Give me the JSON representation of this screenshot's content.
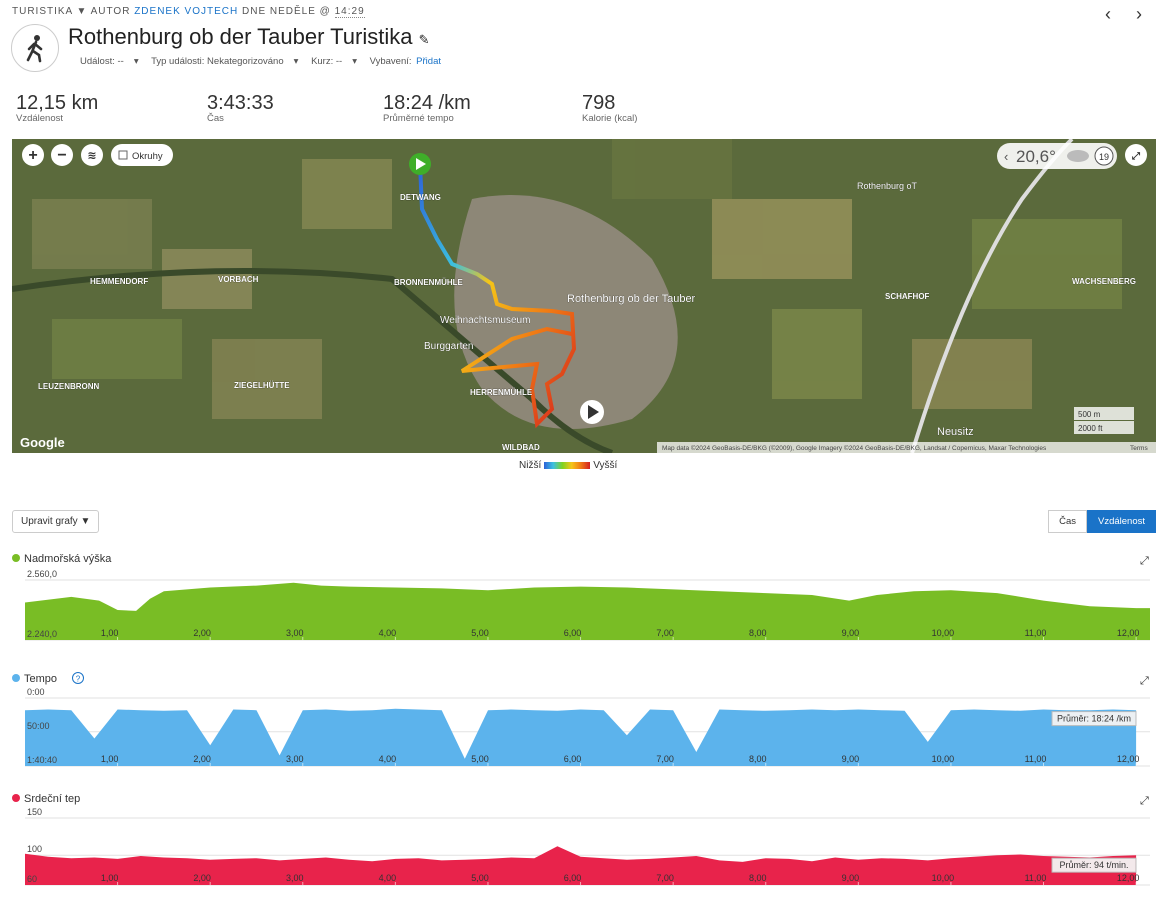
{
  "header": {
    "breadcrumb": {
      "activity": "TURISTIKA",
      "author_prefix": "AUTOR",
      "author": "ZDENEK VOJTECH",
      "date_prefix": "DNE NEDĚLE @",
      "time": "14:29"
    },
    "title": "Rothenburg ob der Tauber Turistika",
    "meta": {
      "event": "Událost: --",
      "event_type": "Typ události: Nekategorizováno",
      "course": "Kurz: --",
      "gear_label": "Vybavení:",
      "gear_link": "Přidat"
    }
  },
  "stats": [
    {
      "value": "12,15 km",
      "label": "Vzdálenost"
    },
    {
      "value": "3:43:33",
      "label": "Čas"
    },
    {
      "value": "18:24 /km",
      "label": "Průměrné tempo"
    },
    {
      "value": "798",
      "label": "Kalorie (kcal)"
    }
  ],
  "map": {
    "layers_toggle": "Okruhy",
    "temperature": "20,6°",
    "zoom": "19",
    "places": [
      "Rothenburg ob der Tauber",
      "HEMMENDORF",
      "VORBACH",
      "LEUZENBRONN",
      "ZIEGELHÜTTE",
      "HERRENMÜHLE",
      "WILDBAD",
      "BRONNENMÜHLE",
      "SCHAFHOF",
      "WACHSENBERG",
      "Neusitz",
      "DETWANG",
      "Burggarten",
      "Rothenburg oT",
      "Weihnachtsmuseum"
    ],
    "scale": [
      "500 m",
      "2000 ft"
    ],
    "logo": "Google",
    "attribution": "Map data ©2024 GeoBasis-DE/BKG (©2009), Google Imagery ©2024 GeoBasis-DE/BKG, Landsat / Copernicus, Maxar Technologies",
    "terms": "Terms",
    "legend": {
      "low": "Nižší",
      "high": "Vyšší"
    }
  },
  "controls": {
    "edit_charts": "Upravit grafy ▼",
    "toggle": [
      "Čas",
      "Vzdálenost"
    ]
  },
  "chart_data": [
    {
      "type": "area",
      "title": "Nadmořská výška",
      "color": "#79bd25",
      "x": [
        0,
        0.5,
        0.8,
        1,
        1.2,
        1.35,
        1.5,
        2,
        2.5,
        2.9,
        3.2,
        3.5,
        4,
        4.5,
        5,
        5.5,
        6,
        6.5,
        7,
        7.5,
        8,
        8.5,
        8.9,
        9.2,
        9.6,
        10,
        10.5,
        11,
        11.5,
        12,
        12.15
      ],
      "values": [
        2440,
        2470,
        2450,
        2400,
        2395,
        2460,
        2500,
        2520,
        2530,
        2545,
        2530,
        2525,
        2520,
        2515,
        2505,
        2520,
        2525,
        2520,
        2510,
        2500,
        2490,
        2480,
        2450,
        2480,
        2500,
        2505,
        2490,
        2450,
        2420,
        2410,
        2410
      ],
      "xlim": [
        0,
        12.15
      ],
      "xticks": [
        {
          "value": 1,
          "label": "1,00"
        },
        {
          "value": 2,
          "label": "2,00"
        },
        {
          "value": 3,
          "label": "3,00"
        },
        {
          "value": 4,
          "label": "4,00"
        },
        {
          "value": 5,
          "label": "5,00"
        },
        {
          "value": 6,
          "label": "6,00"
        },
        {
          "value": 7,
          "label": "7,00"
        },
        {
          "value": 8,
          "label": "8,00"
        },
        {
          "value": 9,
          "label": "9,00"
        },
        {
          "value": 10,
          "label": "10,00"
        },
        {
          "value": 11,
          "label": "11,00"
        },
        {
          "value": 12,
          "label": "12,00"
        }
      ],
      "ylim": [
        2240,
        2560
      ],
      "yticks": [
        {
          "value": 2240,
          "label": "2.240,0"
        },
        {
          "value": 2560,
          "label": "2.560,0"
        }
      ]
    },
    {
      "type": "area",
      "title": "Tempo",
      "color": "#5cb3ec",
      "inverted": true,
      "annotation": "Průměr: 18:24 /km",
      "x": [
        0,
        0.25,
        0.5,
        0.75,
        1,
        1.25,
        1.5,
        1.75,
        2,
        2.25,
        2.5,
        2.75,
        3,
        3.25,
        3.5,
        3.75,
        4,
        4.25,
        4.5,
        4.75,
        5,
        5.25,
        5.5,
        5.75,
        6,
        6.25,
        6.5,
        6.75,
        7,
        7.25,
        7.5,
        7.75,
        8,
        8.25,
        8.5,
        8.75,
        9,
        9.25,
        9.5,
        9.75,
        10,
        10.25,
        10.5,
        10.75,
        11,
        11.25,
        11.5,
        11.75,
        12
      ],
      "values": [
        18,
        17,
        18,
        60,
        17,
        18,
        19,
        18,
        70,
        17,
        18,
        85,
        18,
        17,
        19,
        18,
        16,
        17,
        18,
        90,
        18,
        17,
        18,
        19,
        17,
        18,
        55,
        17,
        18,
        80,
        17,
        18,
        19,
        18,
        17,
        18,
        17,
        18,
        19,
        65,
        18,
        17,
        18,
        19,
        17,
        18,
        18,
        17,
        18
      ],
      "xlim": [
        0,
        12.15
      ],
      "xticks": [
        {
          "value": 1,
          "label": "1,00"
        },
        {
          "value": 2,
          "label": "2,00"
        },
        {
          "value": 3,
          "label": "3,00"
        },
        {
          "value": 4,
          "label": "4,00"
        },
        {
          "value": 5,
          "label": "5,00"
        },
        {
          "value": 6,
          "label": "6,00"
        },
        {
          "value": 7,
          "label": "7,00"
        },
        {
          "value": 8,
          "label": "8,00"
        },
        {
          "value": 9,
          "label": "9,00"
        },
        {
          "value": 10,
          "label": "10,00"
        },
        {
          "value": 11,
          "label": "11,00"
        },
        {
          "value": 12,
          "label": "12,00"
        }
      ],
      "ylim": [
        0,
        100.6667
      ],
      "yticks": [
        {
          "value": 0,
          "label": "0:00"
        },
        {
          "value": 50,
          "label": "50:00"
        },
        {
          "value": 100.6667,
          "label": "1:40:40"
        }
      ]
    },
    {
      "type": "area",
      "title": "Srdeční tep",
      "color": "#e8234b",
      "annotation": "Průměr: 94 t/min.",
      "x": [
        0,
        0.25,
        0.5,
        0.75,
        1,
        1.25,
        1.5,
        1.75,
        2,
        2.25,
        2.5,
        2.75,
        3,
        3.25,
        3.5,
        3.75,
        4,
        4.25,
        4.5,
        4.75,
        5,
        5.25,
        5.5,
        5.75,
        6,
        6.25,
        6.5,
        6.75,
        7,
        7.25,
        7.5,
        7.75,
        8,
        8.25,
        8.5,
        8.75,
        9,
        9.25,
        9.5,
        9.75,
        10,
        10.25,
        10.5,
        10.75,
        11,
        11.25,
        11.5,
        11.75,
        12
      ],
      "values": [
        102,
        98,
        96,
        97,
        95,
        99,
        97,
        96,
        94,
        95,
        96,
        93,
        95,
        97,
        94,
        92,
        95,
        96,
        93,
        94,
        95,
        97,
        96,
        112,
        98,
        96,
        94,
        95,
        97,
        99,
        93,
        91,
        96,
        95,
        92,
        97,
        94,
        96,
        95,
        93,
        96,
        98,
        100,
        101,
        99,
        98,
        97,
        99,
        100
      ],
      "xlim": [
        0,
        12.15
      ],
      "xticks": [
        {
          "value": 1,
          "label": "1,00"
        },
        {
          "value": 2,
          "label": "2,00"
        },
        {
          "value": 3,
          "label": "3,00"
        },
        {
          "value": 4,
          "label": "4,00"
        },
        {
          "value": 5,
          "label": "5,00"
        },
        {
          "value": 6,
          "label": "6,00"
        },
        {
          "value": 7,
          "label": "7,00"
        },
        {
          "value": 8,
          "label": "8,00"
        },
        {
          "value": 9,
          "label": "9,00"
        },
        {
          "value": 10,
          "label": "10,00"
        },
        {
          "value": 11,
          "label": "11,00"
        },
        {
          "value": 12,
          "label": "12,00"
        }
      ],
      "ylim": [
        60,
        150
      ],
      "yticks": [
        60,
        100,
        150
      ]
    }
  ]
}
